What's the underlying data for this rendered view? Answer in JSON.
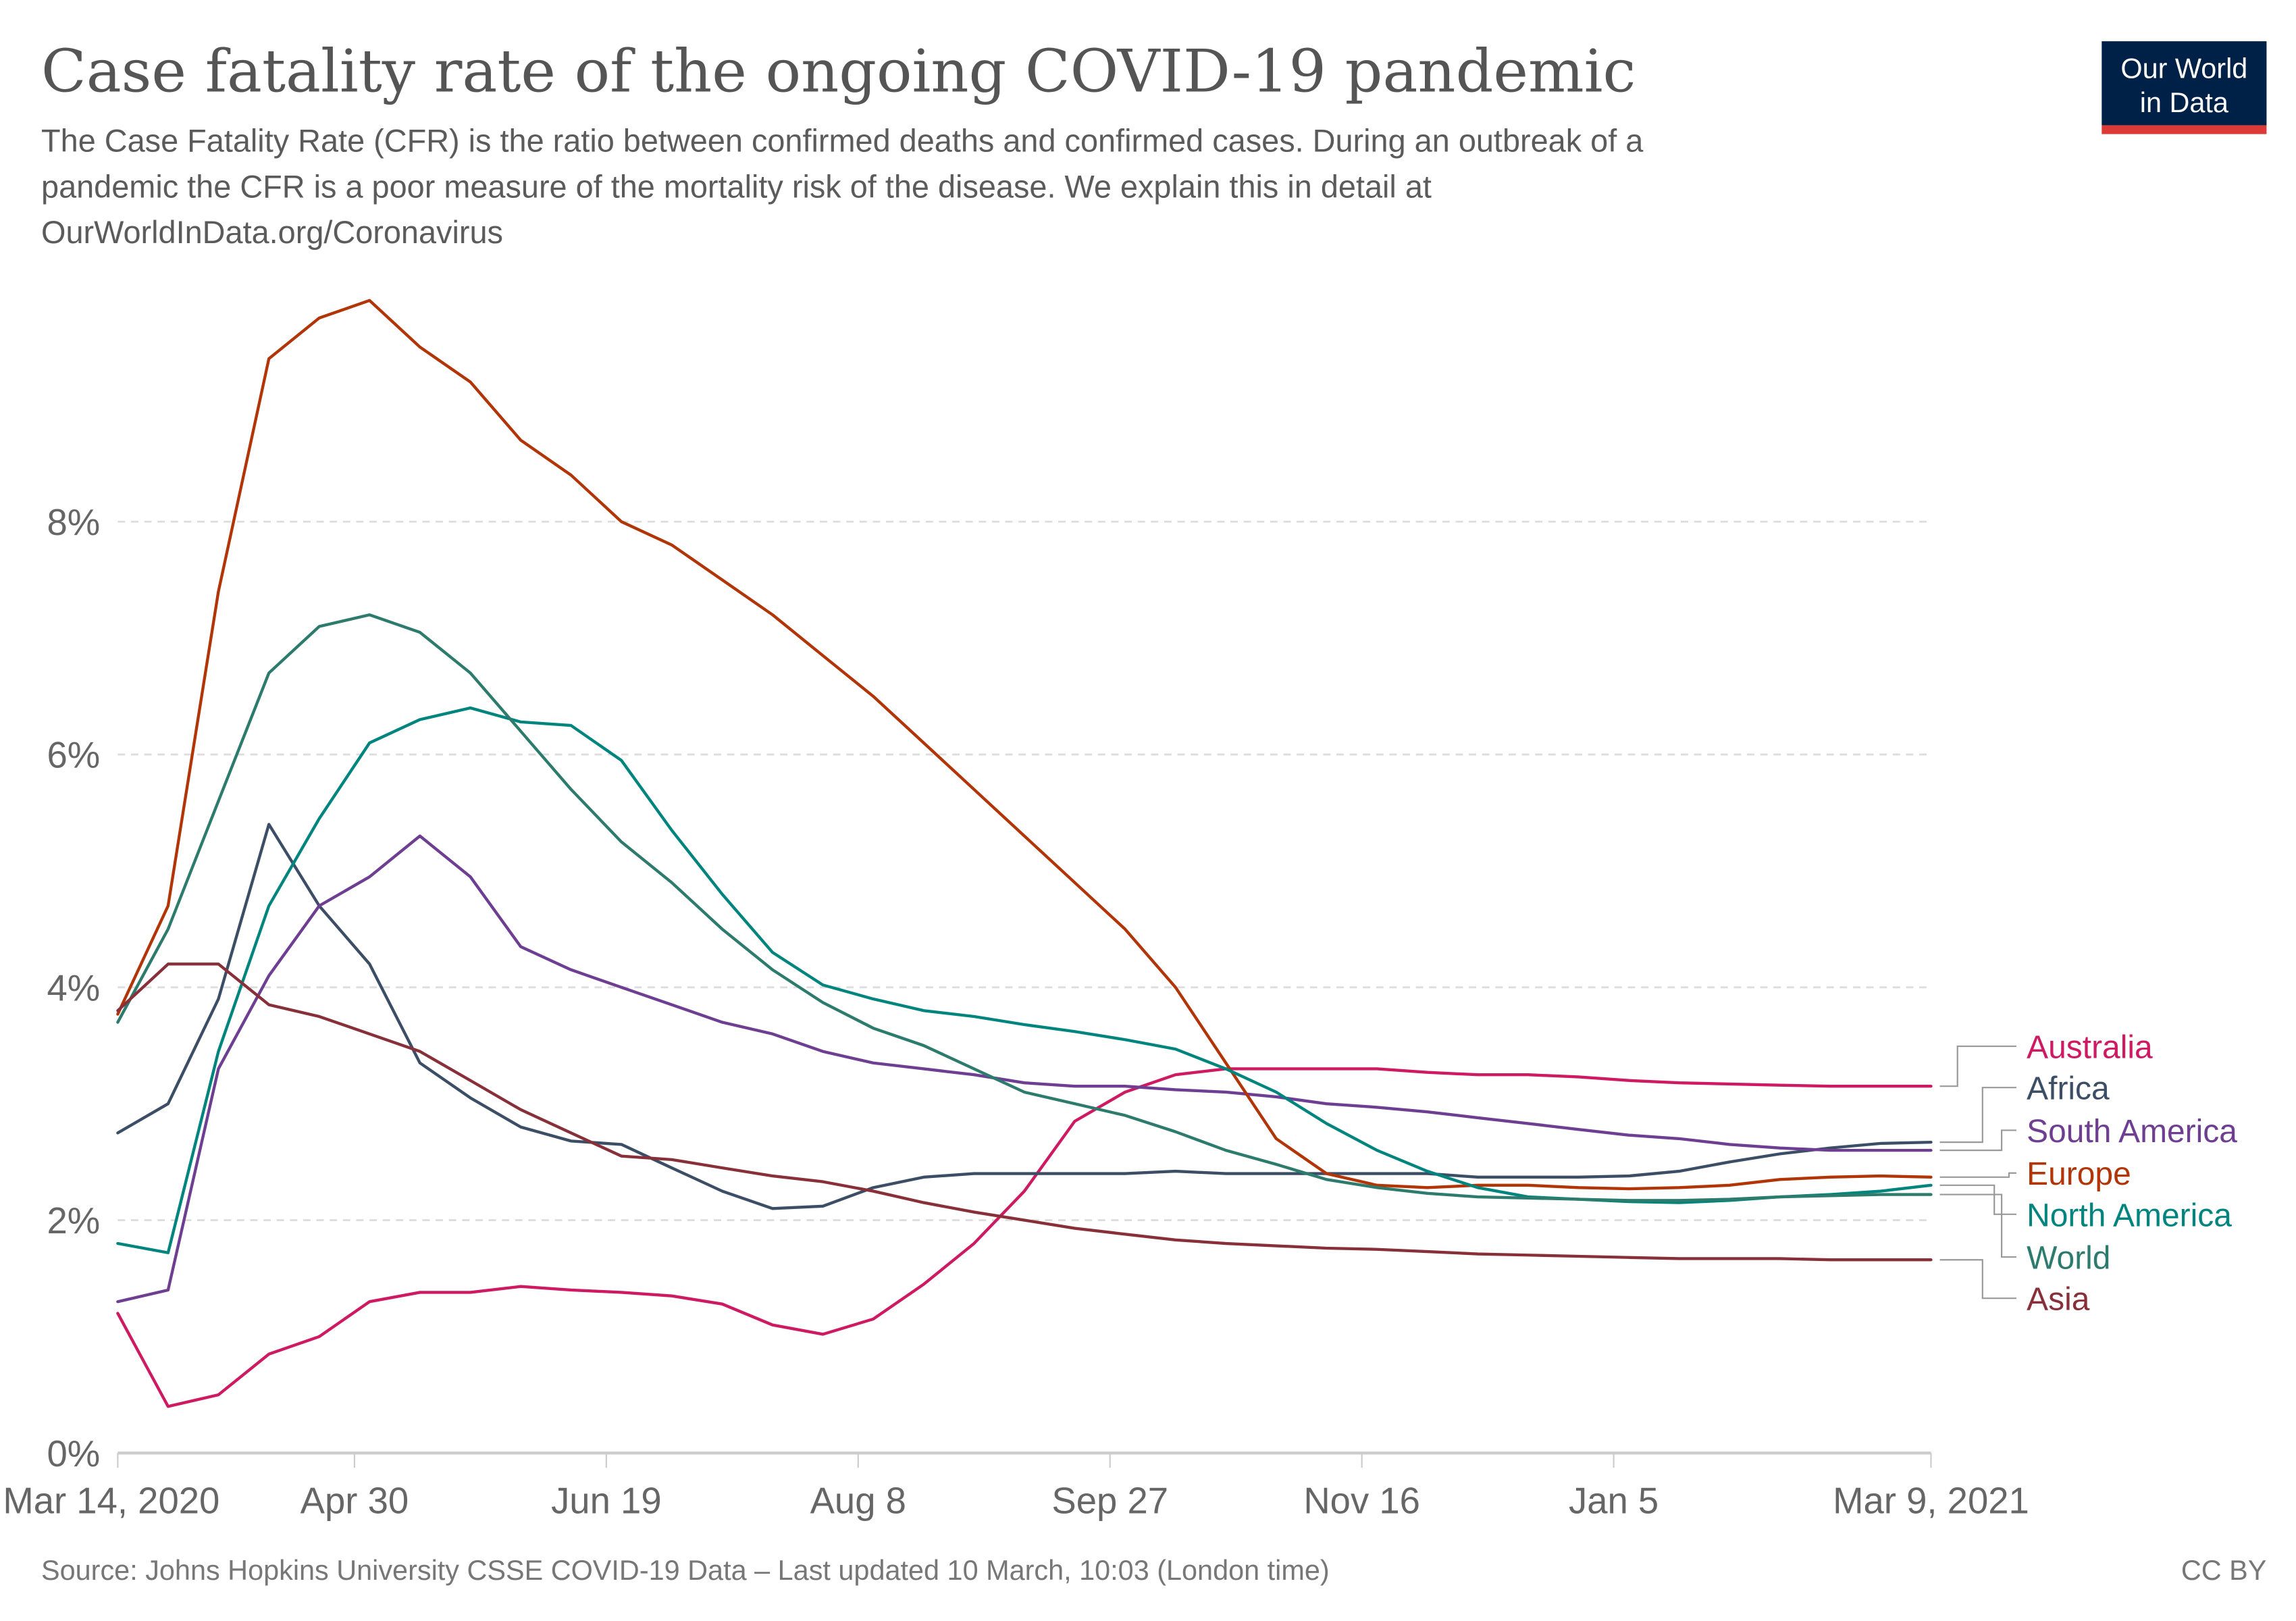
{
  "header": {
    "title": "Case fatality rate of the ongoing COVID-19 pandemic",
    "subtitle_lines": [
      "The Case Fatality Rate (CFR) is the ratio between confirmed deaths and confirmed cases. During an outbreak of a",
      "pandemic the CFR is a poor measure of the mortality risk of the disease. We explain this in detail at",
      "OurWorldInData.org/Coronavirus"
    ],
    "logo_lines": [
      "Our World",
      "in Data"
    ]
  },
  "footer": {
    "source": "Source: Johns Hopkins University CSSE COVID-19 Data – Last updated 10 March, 10:03 (London time)",
    "license": "CC BY"
  },
  "chart_data": {
    "type": "line",
    "title": "Case fatality rate of the ongoing COVID-19 pandemic",
    "xlabel": "",
    "ylabel": "",
    "x_ticks": [
      "Mar 14, 2020",
      "Apr 30",
      "Jun 19",
      "Aug 8",
      "Sep 27",
      "Nov 16",
      "Jan 5",
      "Mar 9, 2021"
    ],
    "x_tick_dates": [
      "2020-03-14",
      "2020-04-30",
      "2020-06-19",
      "2020-08-08",
      "2020-09-27",
      "2020-11-16",
      "2021-01-05",
      "2021-03-09"
    ],
    "y_ticks": [
      "0%",
      "2%",
      "4%",
      "6%",
      "8%"
    ],
    "y_tick_values": [
      0,
      2,
      4,
      6,
      8
    ],
    "xlim": [
      "2020-03-14",
      "2021-03-09"
    ],
    "ylim": [
      0,
      10
    ],
    "y_unit": "%",
    "grid": "horizontal dashed",
    "legend": "right (line-end labels)",
    "x": [
      "2020-03-14",
      "2020-03-24",
      "2020-04-03",
      "2020-04-13",
      "2020-04-23",
      "2020-05-03",
      "2020-05-13",
      "2020-05-23",
      "2020-06-02",
      "2020-06-12",
      "2020-06-22",
      "2020-07-02",
      "2020-07-12",
      "2020-07-22",
      "2020-08-01",
      "2020-08-11",
      "2020-08-21",
      "2020-08-31",
      "2020-09-10",
      "2020-09-20",
      "2020-09-30",
      "2020-10-10",
      "2020-10-20",
      "2020-10-30",
      "2020-11-09",
      "2020-11-19",
      "2020-11-29",
      "2020-12-09",
      "2020-12-19",
      "2020-12-29",
      "2021-01-08",
      "2021-01-18",
      "2021-01-28",
      "2021-02-07",
      "2021-02-17",
      "2021-02-27",
      "2021-03-09"
    ],
    "series": [
      {
        "name": "Australia",
        "color": "#ce1a62",
        "values": [
          1.2,
          0.4,
          0.5,
          0.85,
          1.0,
          1.3,
          1.38,
          1.38,
          1.43,
          1.4,
          1.38,
          1.35,
          1.28,
          1.1,
          1.02,
          1.15,
          1.45,
          1.8,
          2.25,
          2.85,
          3.1,
          3.25,
          3.3,
          3.3,
          3.3,
          3.3,
          3.27,
          3.25,
          3.25,
          3.23,
          3.2,
          3.18,
          3.17,
          3.16,
          3.15,
          3.15,
          3.15
        ]
      },
      {
        "name": "Africa",
        "color": "#3c4e66",
        "values": [
          2.75,
          3.0,
          3.9,
          5.4,
          4.7,
          4.2,
          3.35,
          3.05,
          2.8,
          2.68,
          2.65,
          2.45,
          2.25,
          2.1,
          2.12,
          2.28,
          2.37,
          2.4,
          2.4,
          2.4,
          2.4,
          2.42,
          2.4,
          2.4,
          2.4,
          2.4,
          2.4,
          2.37,
          2.37,
          2.37,
          2.38,
          2.42,
          2.5,
          2.57,
          2.62,
          2.66,
          2.67
        ]
      },
      {
        "name": "South America",
        "color": "#6d3e91",
        "values": [
          1.3,
          1.4,
          3.3,
          4.1,
          4.7,
          4.95,
          5.3,
          4.95,
          4.35,
          4.15,
          4.0,
          3.85,
          3.7,
          3.6,
          3.45,
          3.35,
          3.3,
          3.25,
          3.18,
          3.15,
          3.15,
          3.12,
          3.1,
          3.06,
          3.0,
          2.97,
          2.93,
          2.88,
          2.83,
          2.78,
          2.73,
          2.7,
          2.65,
          2.62,
          2.6,
          2.6,
          2.6
        ]
      },
      {
        "name": "Europe",
        "color": "#b13507",
        "values": [
          3.77,
          4.7,
          7.4,
          9.4,
          9.75,
          9.9,
          9.5,
          9.2,
          8.7,
          8.4,
          8.0,
          7.8,
          7.5,
          7.2,
          6.85,
          6.5,
          6.1,
          5.7,
          5.3,
          4.9,
          4.5,
          4.0,
          3.35,
          2.7,
          2.4,
          2.3,
          2.28,
          2.3,
          2.3,
          2.28,
          2.27,
          2.28,
          2.3,
          2.35,
          2.37,
          2.38,
          2.37
        ]
      },
      {
        "name": "North America",
        "color": "#00847e",
        "values": [
          1.8,
          1.72,
          3.45,
          4.7,
          5.45,
          6.1,
          6.3,
          6.4,
          6.28,
          6.25,
          5.95,
          5.35,
          4.8,
          4.3,
          4.02,
          3.9,
          3.8,
          3.75,
          3.68,
          3.62,
          3.55,
          3.47,
          3.3,
          3.1,
          2.83,
          2.6,
          2.42,
          2.28,
          2.2,
          2.18,
          2.16,
          2.15,
          2.17,
          2.2,
          2.22,
          2.25,
          2.3
        ]
      },
      {
        "name": "World",
        "color": "#2c7b6c",
        "values": [
          3.7,
          4.5,
          5.6,
          6.7,
          7.1,
          7.2,
          7.05,
          6.7,
          6.2,
          5.7,
          5.25,
          4.9,
          4.5,
          4.15,
          3.87,
          3.65,
          3.5,
          3.3,
          3.1,
          3.0,
          2.9,
          2.76,
          2.6,
          2.48,
          2.35,
          2.28,
          2.23,
          2.2,
          2.19,
          2.18,
          2.17,
          2.17,
          2.18,
          2.2,
          2.21,
          2.22,
          2.22
        ]
      },
      {
        "name": "Asia",
        "color": "#883039",
        "values": [
          3.8,
          4.2,
          4.2,
          3.85,
          3.75,
          3.6,
          3.45,
          3.2,
          2.95,
          2.75,
          2.55,
          2.52,
          2.45,
          2.38,
          2.33,
          2.25,
          2.15,
          2.07,
          2.0,
          1.93,
          1.88,
          1.83,
          1.8,
          1.78,
          1.76,
          1.75,
          1.73,
          1.71,
          1.7,
          1.69,
          1.68,
          1.67,
          1.67,
          1.67,
          1.66,
          1.66,
          1.66
        ]
      }
    ]
  },
  "colors": {
    "logo_bg": "#002147",
    "logo_bar": "#dc3a37",
    "grid": "#dddddd",
    "axis": "#cccccc"
  }
}
